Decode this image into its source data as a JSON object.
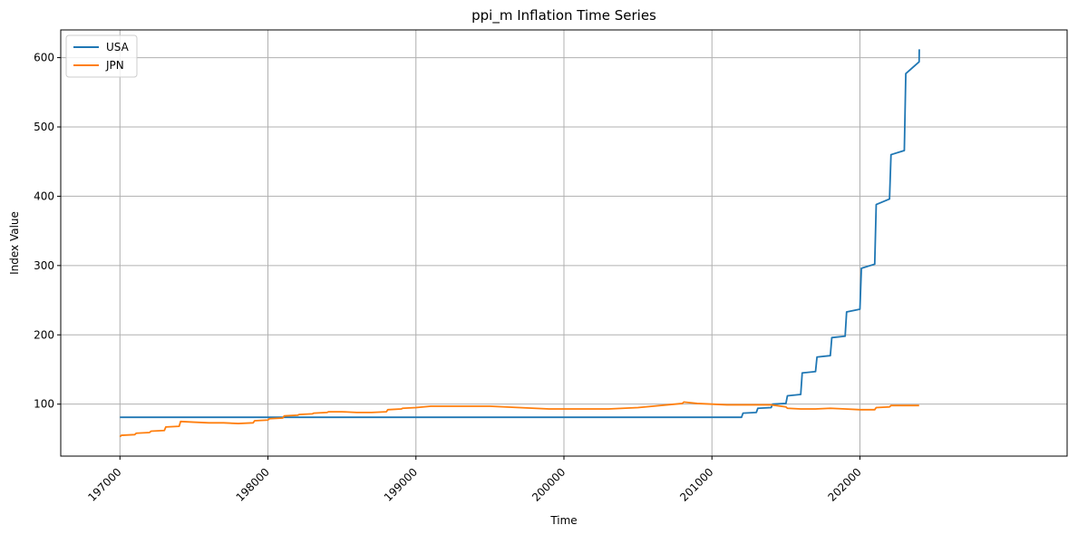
{
  "chart_data": {
    "type": "line",
    "title": "ppi_m Inflation Time Series",
    "xlabel": "Time",
    "ylabel": "Index Value",
    "xlim": [
      196600,
      203400
    ],
    "ylim": [
      25,
      640
    ],
    "xticks": [
      197000,
      198000,
      199000,
      200000,
      201000,
      202000
    ],
    "xtick_labels": [
      "197000",
      "198000",
      "199000",
      "200000",
      "201000",
      "202000"
    ],
    "yticks": [
      100,
      200,
      300,
      400,
      500,
      600
    ],
    "ytick_labels": [
      "100",
      "200",
      "300",
      "400",
      "500",
      "600"
    ],
    "grid": true,
    "legend_position": "top-left",
    "series": [
      {
        "name": "USA",
        "color": "#1f77b4",
        "points": [
          [
            197000,
            81
          ],
          [
            201200,
            81
          ],
          [
            201210,
            87
          ],
          [
            201300,
            88
          ],
          [
            201310,
            94
          ],
          [
            201400,
            95
          ],
          [
            201410,
            100
          ],
          [
            201500,
            101
          ],
          [
            201510,
            112
          ],
          [
            201600,
            114
          ],
          [
            201610,
            145
          ],
          [
            201700,
            147
          ],
          [
            201710,
            168
          ],
          [
            201800,
            170
          ],
          [
            201810,
            196
          ],
          [
            201900,
            198
          ],
          [
            201910,
            233
          ],
          [
            202000,
            237
          ],
          [
            202010,
            296
          ],
          [
            202100,
            302
          ],
          [
            202110,
            388
          ],
          [
            202200,
            396
          ],
          [
            202210,
            460
          ],
          [
            202300,
            466
          ],
          [
            202310,
            577
          ],
          [
            202400,
            594
          ],
          [
            202401,
            612
          ]
        ]
      },
      {
        "name": "JPN",
        "color": "#ff7f0e",
        "points": [
          [
            197000,
            53
          ],
          [
            197010,
            55
          ],
          [
            197100,
            56
          ],
          [
            197110,
            58
          ],
          [
            197200,
            59
          ],
          [
            197210,
            61
          ],
          [
            197300,
            62
          ],
          [
            197310,
            67
          ],
          [
            197400,
            68
          ],
          [
            197410,
            75
          ],
          [
            197500,
            74
          ],
          [
            197600,
            73
          ],
          [
            197700,
            73
          ],
          [
            197800,
            72
          ],
          [
            197900,
            73
          ],
          [
            197910,
            76
          ],
          [
            198000,
            77
          ],
          [
            198010,
            79
          ],
          [
            198100,
            80
          ],
          [
            198110,
            83
          ],
          [
            198200,
            84
          ],
          [
            198210,
            85
          ],
          [
            198300,
            86
          ],
          [
            198310,
            87
          ],
          [
            198400,
            88
          ],
          [
            198410,
            89
          ],
          [
            198500,
            89
          ],
          [
            198600,
            88
          ],
          [
            198700,
            88
          ],
          [
            198800,
            89
          ],
          [
            198810,
            92
          ],
          [
            198900,
            93
          ],
          [
            198910,
            94
          ],
          [
            199000,
            95
          ],
          [
            199100,
            97
          ],
          [
            199200,
            97
          ],
          [
            199300,
            97
          ],
          [
            199400,
            97
          ],
          [
            199500,
            97
          ],
          [
            199600,
            96
          ],
          [
            199700,
            95
          ],
          [
            199800,
            94
          ],
          [
            199900,
            93
          ],
          [
            200000,
            93
          ],
          [
            200100,
            93
          ],
          [
            200200,
            93
          ],
          [
            200300,
            93
          ],
          [
            200400,
            94
          ],
          [
            200500,
            95
          ],
          [
            200600,
            97
          ],
          [
            200700,
            99
          ],
          [
            200800,
            101
          ],
          [
            200810,
            103
          ],
          [
            200900,
            101
          ],
          [
            201000,
            100
          ],
          [
            201100,
            99
          ],
          [
            201200,
            99
          ],
          [
            201300,
            99
          ],
          [
            201400,
            99
          ],
          [
            201500,
            96
          ],
          [
            201510,
            94
          ],
          [
            201600,
            93
          ],
          [
            201700,
            93
          ],
          [
            201800,
            94
          ],
          [
            201900,
            93
          ],
          [
            202000,
            92
          ],
          [
            202100,
            92
          ],
          [
            202110,
            95
          ],
          [
            202200,
            96
          ],
          [
            202210,
            98
          ],
          [
            202300,
            98
          ],
          [
            202400,
            98
          ]
        ]
      }
    ]
  }
}
